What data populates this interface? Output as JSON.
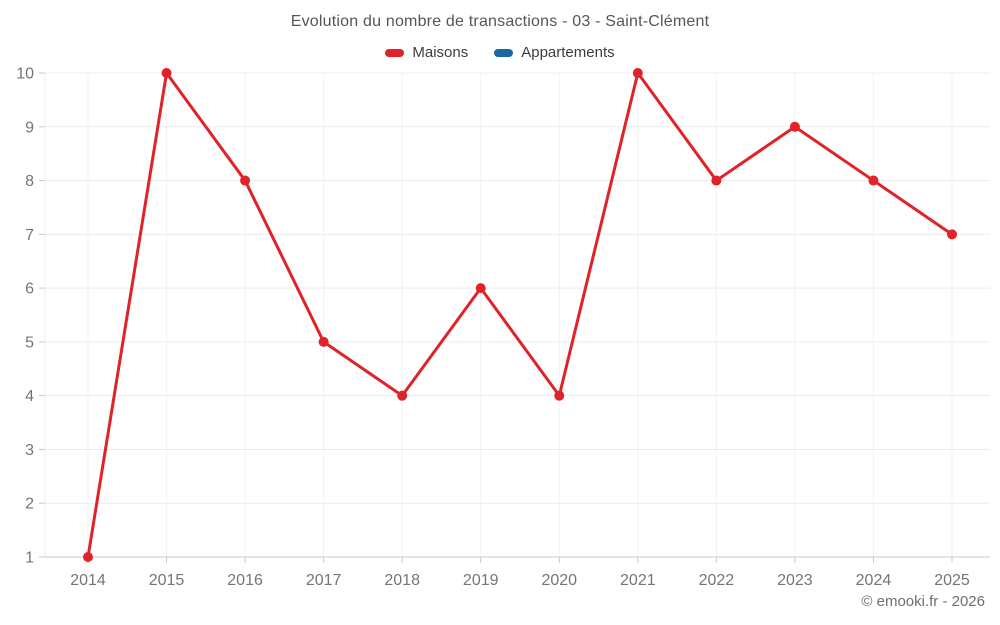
{
  "header": {
    "title": "Evolution du nombre de transactions - 03 - Saint-Clément"
  },
  "legend": {
    "items": [
      {
        "label": "Maisons",
        "color": "#e02329"
      },
      {
        "label": "Appartements",
        "color": "#17699e"
      }
    ]
  },
  "footer": {
    "copyright": "© emooki.fr - 2026"
  },
  "chart_data": {
    "type": "line",
    "title": "Evolution du nombre de transactions - 03 - Saint-Clément",
    "categories": [
      "2014",
      "2015",
      "2016",
      "2017",
      "2018",
      "2019",
      "2020",
      "2021",
      "2022",
      "2023",
      "2024",
      "2025"
    ],
    "series": [
      {
        "name": "Maisons",
        "color": "#e02329",
        "values": [
          1,
          10,
          8,
          5,
          4,
          6,
          4,
          10,
          8,
          9,
          8,
          7
        ]
      },
      {
        "name": "Appartements",
        "color": "#17699e",
        "values": []
      }
    ],
    "yticks": [
      1,
      2,
      3,
      4,
      5,
      6,
      7,
      8,
      9,
      10
    ],
    "ylim": [
      1,
      10
    ],
    "xlabel": "",
    "ylabel": "",
    "grid": true,
    "legend_position": "top"
  }
}
